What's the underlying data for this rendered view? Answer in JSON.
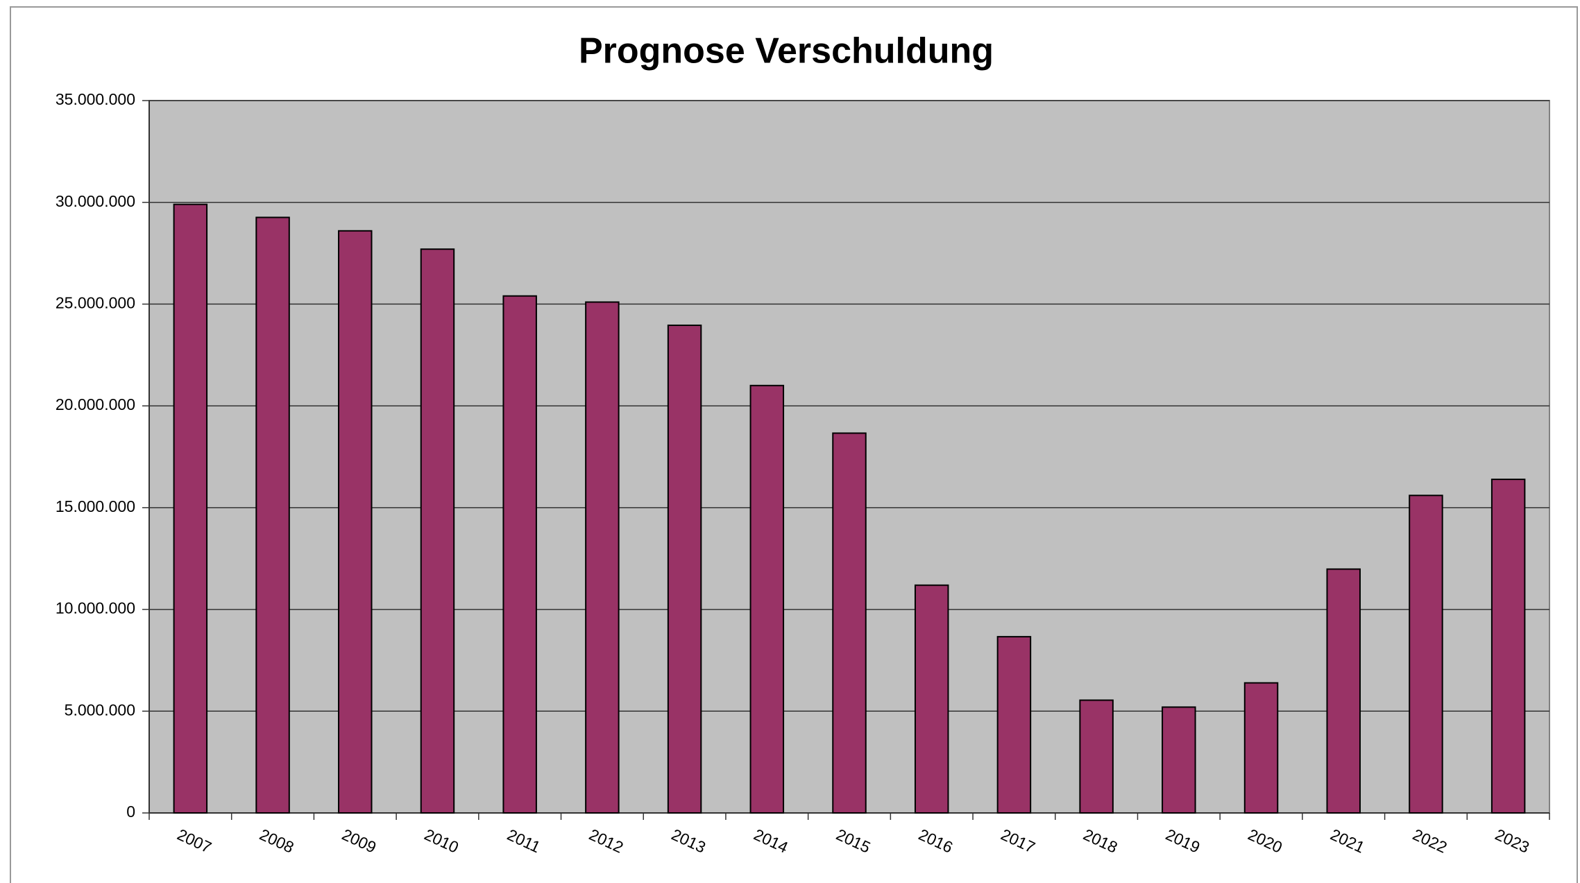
{
  "chart_data": {
    "type": "bar",
    "title": "Prognose Verschuldung",
    "categories": [
      "2007",
      "2008",
      "2009",
      "2010",
      "2011",
      "2012",
      "2013",
      "2014",
      "2015",
      "2016",
      "2017",
      "2018",
      "2019",
      "2020",
      "2021",
      "2022",
      "2023"
    ],
    "values": [
      29900000,
      29260000,
      28600000,
      27700000,
      25400000,
      25100000,
      23960000,
      21000000,
      18660000,
      11190000,
      8660000,
      5540000,
      5200000,
      6390000,
      11980000,
      15600000,
      16390000
    ],
    "color": "#993366",
    "ylim": [
      0,
      35000000
    ],
    "yticks": [
      0,
      {
        "value": 5000000,
        "label": "5.000.000"
      },
      {
        "value": 10000000,
        "label": "10.000.000"
      },
      {
        "value": 15000000,
        "label": "15.000.000"
      },
      {
        "value": 20000000,
        "label": "20.000.000"
      },
      {
        "value": 25000000,
        "label": "25.000.000"
      },
      {
        "value": 30000000,
        "label": "30.000.000"
      },
      {
        "value": 35000000,
        "label": "35.000.000"
      }
    ],
    "grid": true
  }
}
